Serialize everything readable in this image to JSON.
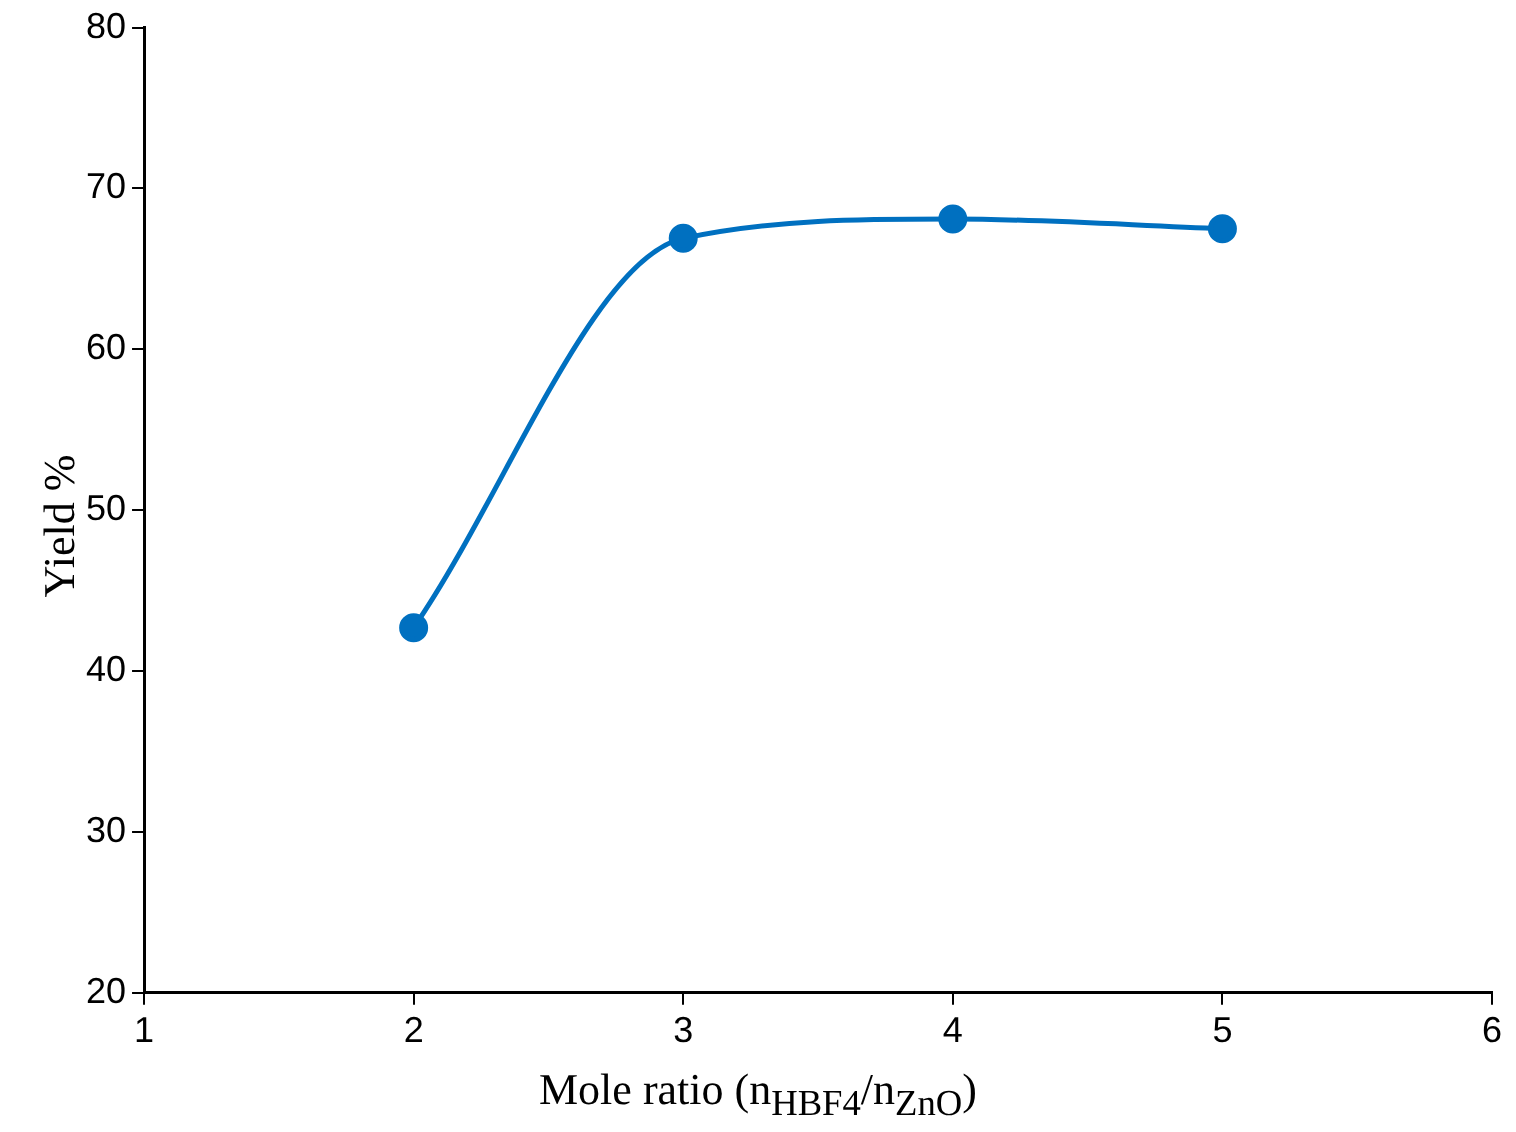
{
  "chart_data": {
    "type": "line",
    "xlabel": "Mole ratio (n$_{HBF4}$/n$_{ZnO}$)",
    "ylabel": "Yield %",
    "x": [
      2,
      3,
      4,
      5
    ],
    "series": [
      {
        "color": "#0070c0",
        "values": [
          42.7,
          66.9,
          68.1,
          67.5
        ]
      }
    ],
    "xlim": [
      1,
      6
    ],
    "xticks": [
      1,
      2,
      3,
      4,
      5,
      6
    ],
    "ylim": [
      20,
      80
    ],
    "yticks": [
      20,
      30,
      40,
      50,
      60,
      70,
      80
    ],
    "grid": false,
    "legend": false,
    "marker": "circle",
    "line_style": "solid"
  }
}
